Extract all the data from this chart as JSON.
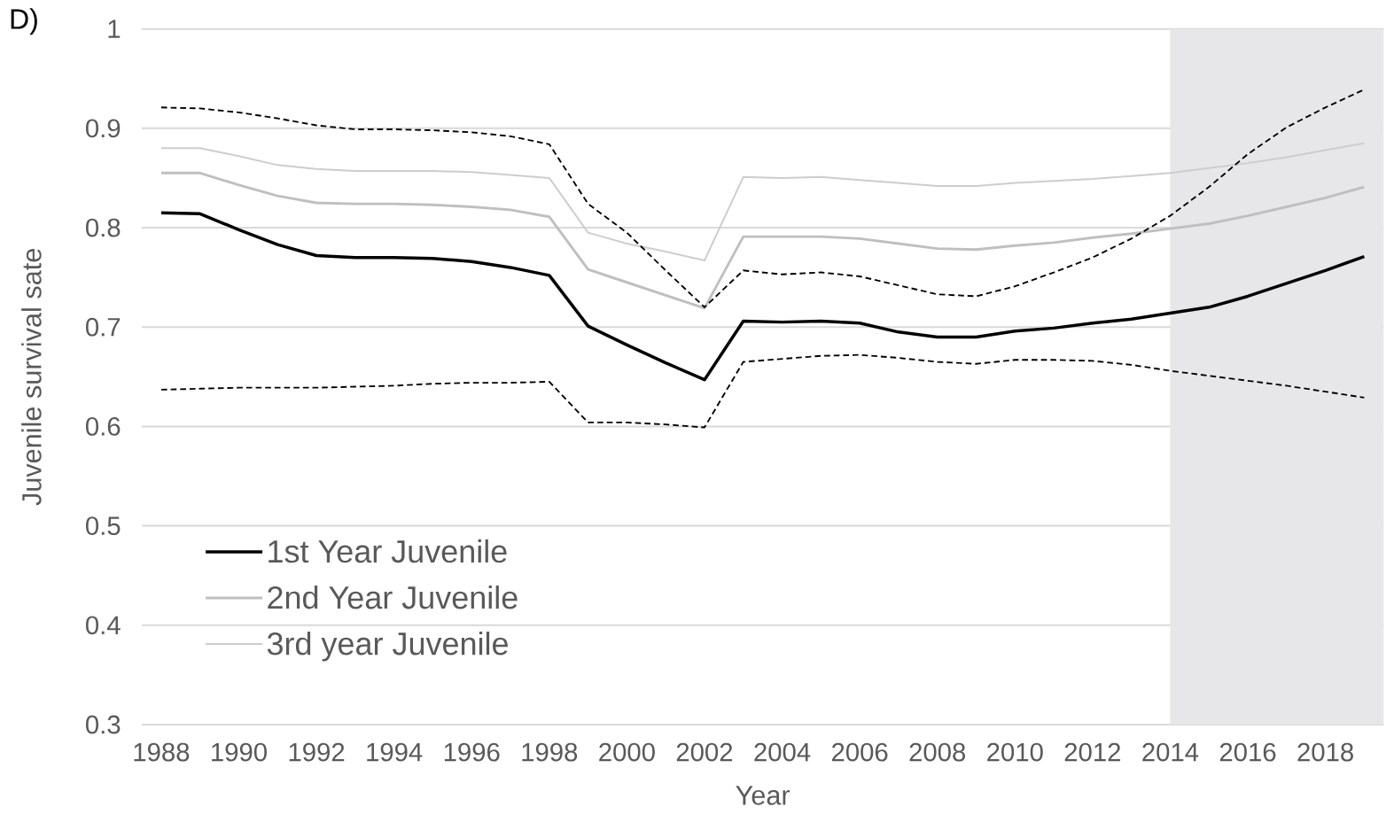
{
  "chart_data": {
    "type": "line",
    "xlabel": "Year",
    "ylabel": "Juvenile survival sate",
    "annotations": [
      "D)"
    ],
    "x": [
      1988,
      1989,
      1990,
      1991,
      1992,
      1993,
      1994,
      1995,
      1996,
      1997,
      1998,
      1999,
      2000,
      2001,
      2002,
      2003,
      2004,
      2005,
      2006,
      2007,
      2008,
      2009,
      2010,
      2011,
      2012,
      2013,
      2014,
      2015,
      2016,
      2017,
      2018,
      2019
    ],
    "series": [
      {
        "name": "1st Year Juvenile",
        "color": "#000000",
        "values": [
          0.815,
          0.814,
          0.798,
          0.783,
          0.772,
          0.77,
          0.77,
          0.769,
          0.766,
          0.76,
          0.752,
          0.701,
          0.682,
          0.664,
          0.647,
          0.706,
          0.705,
          0.706,
          0.704,
          0.695,
          0.69,
          0.69,
          0.696,
          0.699,
          0.704,
          0.708,
          0.714,
          0.72,
          0.731,
          0.744,
          0.757,
          0.771
        ]
      },
      {
        "name": "2nd Year Juvenile",
        "color": "#bfbfbf",
        "values": [
          0.855,
          0.855,
          0.843,
          0.832,
          0.825,
          0.824,
          0.824,
          0.823,
          0.821,
          0.818,
          0.811,
          0.758,
          0.745,
          0.732,
          0.719,
          0.791,
          0.791,
          0.791,
          0.789,
          0.784,
          0.779,
          0.778,
          0.782,
          0.785,
          0.79,
          0.794,
          0.799,
          0.804,
          0.812,
          0.821,
          0.83,
          0.841
        ]
      },
      {
        "name": "3rd year Juvenile",
        "color": "#cdcdcd",
        "values": [
          0.88,
          0.88,
          0.872,
          0.863,
          0.859,
          0.857,
          0.857,
          0.857,
          0.856,
          0.853,
          0.85,
          0.795,
          0.784,
          0.776,
          0.767,
          0.851,
          0.85,
          0.851,
          0.848,
          0.845,
          0.842,
          0.842,
          0.845,
          0.847,
          0.849,
          0.852,
          0.855,
          0.86,
          0.865,
          0.871,
          0.878,
          0.885
        ]
      },
      {
        "color": "#000000",
        "line_style": "dashed",
        "values": [
          0.921,
          0.92,
          0.916,
          0.91,
          0.903,
          0.899,
          0.899,
          0.898,
          0.896,
          0.892,
          0.884,
          0.824,
          0.795,
          0.757,
          0.72,
          0.757,
          0.753,
          0.755,
          0.751,
          0.742,
          0.733,
          0.731,
          0.741,
          0.755,
          0.77,
          0.789,
          0.812,
          0.841,
          0.874,
          0.901,
          0.921,
          0.939
        ]
      },
      {
        "color": "#000000",
        "line_style": "dashed",
        "values": [
          0.637,
          0.638,
          0.639,
          0.639,
          0.639,
          0.64,
          0.641,
          0.643,
          0.644,
          0.644,
          0.645,
          0.604,
          0.604,
          0.602,
          0.599,
          0.665,
          0.668,
          0.671,
          0.672,
          0.669,
          0.665,
          0.663,
          0.667,
          0.667,
          0.666,
          0.662,
          0.656,
          0.651,
          0.646,
          0.641,
          0.635,
          0.629
        ]
      }
    ],
    "bands": [
      {
        "axis": "x",
        "from": 2014,
        "to": 2019.5,
        "color": "#e7e6e8"
      }
    ],
    "xlim": [
      1987.5,
      2019.5
    ],
    "xticks": [
      1988,
      1990,
      1992,
      1994,
      1996,
      1998,
      2000,
      2002,
      2004,
      2006,
      2008,
      2010,
      2012,
      2014,
      2016,
      2018
    ],
    "ylim": [
      0.3,
      1
    ],
    "yticks": [
      0.3,
      0.4,
      0.5,
      0.6,
      0.7,
      0.8,
      0.9,
      1
    ],
    "grid": "y",
    "legend": "bottom left"
  }
}
